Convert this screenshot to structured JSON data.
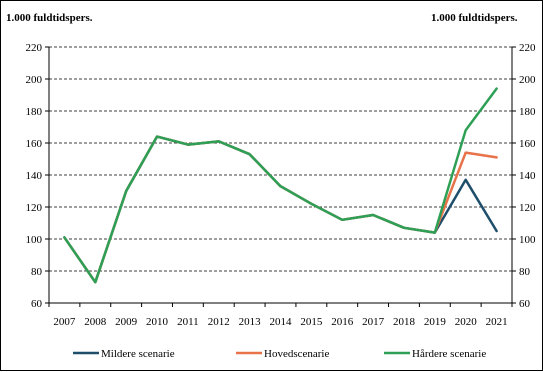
{
  "chart_data": {
    "type": "line",
    "left_axis_unit": "1.000 fuldtidspers.",
    "right_axis_unit": "1.000 fuldtidspers.",
    "ylim": [
      60,
      220
    ],
    "y_ticks": [
      "60",
      "80",
      "100",
      "120",
      "140",
      "160",
      "180",
      "200",
      "220"
    ],
    "y_ticks_right": [
      "60",
      "80",
      "100",
      "120",
      "140",
      "160",
      "180",
      "200",
      "220"
    ],
    "categories": [
      "2007",
      "2008",
      "2009",
      "2010",
      "2011",
      "2012",
      "2013",
      "2014",
      "2015",
      "2016",
      "2017",
      "2018",
      "2019",
      "2020",
      "2021"
    ],
    "grid": true,
    "legend_position": "bottom",
    "series": [
      {
        "name": "Mildere scenarie",
        "color": "#1f4e6b",
        "values": [
          101,
          73,
          130,
          164,
          159,
          161,
          153,
          133,
          122,
          112,
          115,
          107,
          104,
          137,
          105
        ]
      },
      {
        "name": "Hovedscenarie",
        "color": "#e8724a",
        "values": [
          101,
          73,
          130,
          164,
          159,
          161,
          153,
          133,
          122,
          112,
          115,
          107,
          104,
          154,
          151
        ]
      },
      {
        "name": "Hårdere scenarie",
        "color": "#2ea055",
        "values": [
          101,
          73,
          130,
          164,
          159,
          161,
          153,
          133,
          122,
          112,
          115,
          107,
          104,
          168,
          194
        ]
      }
    ]
  }
}
